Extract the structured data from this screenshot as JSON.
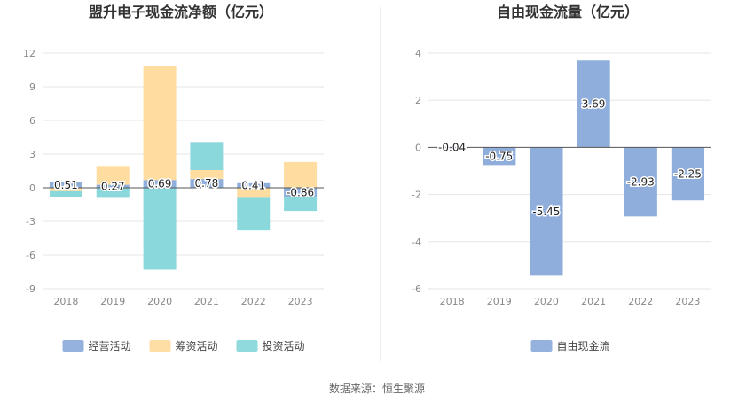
{
  "source_label": "数据来源：恒生聚源",
  "chart_data": [
    {
      "type": "bar",
      "stacked": true,
      "title": "盟升电子现金流净额（亿元）",
      "xlabel": "",
      "ylabel": "",
      "ylim": [
        -9,
        12
      ],
      "yticks": [
        12,
        9,
        6,
        3,
        0,
        -3,
        -6,
        -9
      ],
      "categories": [
        "2018",
        "2019",
        "2020",
        "2021",
        "2022",
        "2023"
      ],
      "series": [
        {
          "name": "经营活动",
          "color": "#8faedc",
          "values": [
            0.51,
            0.27,
            0.69,
            0.78,
            0.41,
            -0.86
          ]
        },
        {
          "name": "筹资活动",
          "color": "#ffdca0",
          "values": [
            -0.3,
            1.6,
            10.2,
            0.8,
            -0.9,
            2.3
          ]
        },
        {
          "name": "投资活动",
          "color": "#8ad8dc",
          "values": [
            -0.5,
            -0.9,
            -7.3,
            2.5,
            -2.9,
            -1.2
          ]
        }
      ],
      "data_labels": [
        "0.51",
        "0.27",
        "0.69",
        "0.78",
        "0.41",
        "-0.86"
      ],
      "legend_position": "bottom",
      "grid": true
    },
    {
      "type": "bar",
      "title": "自由现金流量（亿元）",
      "xlabel": "",
      "ylabel": "",
      "ylim": [
        -6,
        4
      ],
      "yticks": [
        4,
        2,
        0,
        -2,
        -4,
        -6
      ],
      "categories": [
        "2018",
        "2019",
        "2020",
        "2021",
        "2022",
        "2023"
      ],
      "series": [
        {
          "name": "自由现金流",
          "color": "#8faedc",
          "values": [
            -0.04,
            -0.75,
            -5.45,
            3.69,
            -2.93,
            -2.25
          ]
        }
      ],
      "data_labels": [
        "-0.04",
        "-0.75",
        "-5.45",
        "3.69",
        "-2.93",
        "-2.25"
      ],
      "legend_position": "bottom",
      "grid": true
    }
  ]
}
